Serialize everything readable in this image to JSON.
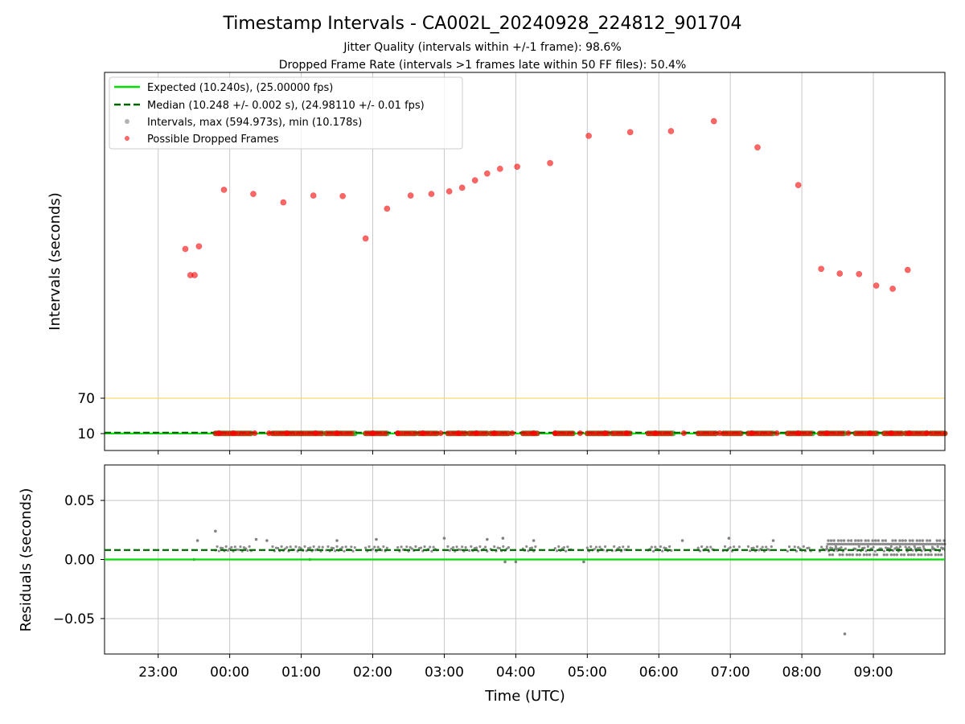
{
  "title": "Timestamp Intervals - CA002L_20240928_224812_901704",
  "subtitle_1": "Jitter Quality (intervals within +/-1 frame): 98.6%",
  "subtitle_2": "Dropped Frame Rate (intervals >1 frames late within 50 FF files): 50.4%",
  "colors": {
    "expected": "#00e000",
    "median": "#006400",
    "interval_points": "#808080",
    "dropped_points": "#ff0000",
    "threshold_line": "#ffd966",
    "grid": "#c8c8c8"
  },
  "chart_data": [
    {
      "type": "scatter",
      "panel": "intervals",
      "ylabel": "Intervals (seconds)",
      "xlabel": "",
      "yticks": [
        10,
        70
      ],
      "xticks": [
        "23:00",
        "00:00",
        "01:00",
        "02:00",
        "03:00",
        "04:00",
        "05:00",
        "06:00",
        "07:00",
        "08:00",
        "09:00"
      ],
      "xlim_hours": [
        -1.75,
        10.0
      ],
      "threshold_value": 70,
      "expected_value": 10.24,
      "median_value": 10.248,
      "grid": "x",
      "legend_position": "upper-left",
      "legend": [
        {
          "key": "expected",
          "label": "Expected (10.240s), (25.00000 fps)"
        },
        {
          "key": "median",
          "label": "Median (10.248 +/- 0.002 s), (24.98110 +/- 0.01 fps)"
        },
        {
          "key": "intervals",
          "label": "Intervals, max (594.973s), min (10.178s)"
        },
        {
          "key": "dropped",
          "label": "Possible Dropped Frames"
        }
      ],
      "interval_segments": [
        [
          -0.2,
          0.3
        ],
        [
          0.6,
          1.0
        ],
        [
          1.0,
          1.3
        ],
        [
          1.35,
          1.75
        ],
        [
          1.9,
          2.2
        ],
        [
          2.35,
          2.6
        ],
        [
          2.65,
          2.9
        ],
        [
          3.05,
          3.3
        ],
        [
          3.35,
          3.6
        ],
        [
          3.65,
          3.9
        ],
        [
          4.1,
          4.3
        ],
        [
          4.55,
          4.8
        ],
        [
          5.0,
          5.3
        ],
        [
          5.35,
          5.6
        ],
        [
          5.85,
          6.2
        ],
        [
          6.55,
          6.8
        ],
        [
          6.9,
          7.15
        ],
        [
          7.25,
          7.6
        ],
        [
          7.8,
          8.15
        ],
        [
          8.25,
          8.6
        ],
        [
          8.75,
          9.05
        ],
        [
          9.15,
          9.4
        ],
        [
          9.45,
          9.75
        ],
        [
          9.8,
          10.0
        ]
      ],
      "dropped_low_points": [
        [
          -0.15,
          10.6
        ],
        [
          0.05,
          10.6
        ],
        [
          0.35,
          10.6
        ],
        [
          0.55,
          10.6
        ],
        [
          0.8,
          10.6
        ],
        [
          1.2,
          10.6
        ],
        [
          1.5,
          10.6
        ],
        [
          2.0,
          10.6
        ],
        [
          2.35,
          10.6
        ],
        [
          2.7,
          10.6
        ],
        [
          2.95,
          10.6
        ],
        [
          3.2,
          10.6
        ],
        [
          3.45,
          10.6
        ],
        [
          3.7,
          10.6
        ],
        [
          3.95,
          10.6
        ],
        [
          4.25,
          10.6
        ],
        [
          4.55,
          10.6
        ],
        [
          4.9,
          10.6
        ],
        [
          5.25,
          10.6
        ],
        [
          5.55,
          10.6
        ],
        [
          5.95,
          10.6
        ],
        [
          6.35,
          10.6
        ],
        [
          6.85,
          10.6
        ],
        [
          7.3,
          10.6
        ],
        [
          7.65,
          10.6
        ],
        [
          7.95,
          10.6
        ],
        [
          8.35,
          10.6
        ],
        [
          8.65,
          10.6
        ],
        [
          8.95,
          10.6
        ],
        [
          9.25,
          10.6
        ],
        [
          9.5,
          10.6
        ],
        [
          9.75,
          10.6
        ]
      ],
      "dropped_high_points": [
        [
          -0.62,
          355
        ],
        [
          -0.55,
          305
        ],
        [
          -0.49,
          305
        ],
        [
          -0.43,
          360
        ],
        [
          -0.08,
          468
        ],
        [
          0.33,
          460
        ],
        [
          0.75,
          444
        ],
        [
          1.17,
          457
        ],
        [
          1.58,
          456
        ],
        [
          1.9,
          375
        ],
        [
          2.2,
          432
        ],
        [
          2.53,
          457
        ],
        [
          2.82,
          460
        ],
        [
          3.07,
          465
        ],
        [
          3.25,
          472
        ],
        [
          3.43,
          486
        ],
        [
          3.6,
          499
        ],
        [
          3.78,
          508
        ],
        [
          4.02,
          512
        ],
        [
          4.48,
          519
        ],
        [
          5.02,
          571
        ],
        [
          5.6,
          578
        ],
        [
          6.17,
          580
        ],
        [
          6.77,
          599
        ],
        [
          7.38,
          549
        ],
        [
          7.95,
          477
        ],
        [
          8.27,
          317
        ],
        [
          8.53,
          308
        ],
        [
          8.8,
          307
        ],
        [
          9.04,
          285
        ],
        [
          9.27,
          279
        ],
        [
          9.48,
          315
        ]
      ]
    },
    {
      "type": "scatter",
      "panel": "residuals",
      "xlabel": "Time (UTC)",
      "ylabel": "Residuals (seconds)",
      "yticks": [
        "0.05",
        "0.00",
        "−0.05"
      ],
      "ylim": [
        -0.08,
        0.08
      ],
      "xticks": [
        "23:00",
        "00:00",
        "01:00",
        "02:00",
        "03:00",
        "04:00",
        "05:00",
        "06:00",
        "07:00",
        "08:00",
        "09:00"
      ],
      "xlim_hours": [
        -1.75,
        10.0
      ],
      "expected_value": 0.0,
      "median_value": 0.008,
      "grid": "both",
      "outlier_points": [
        [
          -0.2,
          0.024
        ],
        [
          0.37,
          0.017
        ],
        [
          -0.45,
          0.016
        ],
        [
          0.52,
          0.016
        ],
        [
          1.5,
          0.016
        ],
        [
          2.05,
          0.017
        ],
        [
          3.0,
          0.018
        ],
        [
          3.6,
          0.017
        ],
        [
          3.82,
          0.018
        ],
        [
          4.25,
          0.016
        ],
        [
          6.33,
          0.016
        ],
        [
          6.98,
          0.018
        ],
        [
          7.6,
          0.016
        ],
        [
          8.6,
          -0.063
        ],
        [
          4.95,
          -0.002
        ],
        [
          3.85,
          -0.002
        ],
        [
          4.0,
          -0.002
        ],
        [
          1.12,
          0.0
        ],
        [
          -0.5,
          0.0
        ]
      ],
      "dense_noise_range": [
        8.35,
        10.0
      ]
    }
  ]
}
